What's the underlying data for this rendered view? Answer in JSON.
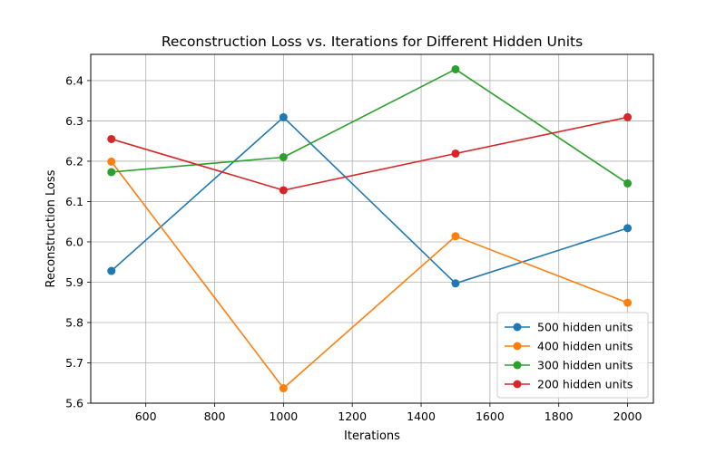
{
  "chart_data": {
    "type": "line",
    "title": "Reconstruction Loss vs. Iterations for Different Hidden Units",
    "xlabel": "Iterations",
    "ylabel": "Reconstruction Loss",
    "x": [
      500,
      1000,
      1500,
      2000
    ],
    "xlim": [
      440,
      2075
    ],
    "ylim": [
      5.6,
      6.465
    ],
    "xticks": [
      600,
      800,
      1000,
      1200,
      1400,
      1600,
      1800,
      2000
    ],
    "yticks": [
      5.6,
      5.7,
      5.8,
      5.9,
      6.0,
      6.1,
      6.2,
      6.3,
      6.4
    ],
    "grid": true,
    "legend": "lower-right",
    "series": [
      {
        "name": "500 hidden units",
        "color": "#1f77b4",
        "values": [
          5.928,
          6.309,
          5.897,
          6.034
        ]
      },
      {
        "name": "400 hidden units",
        "color": "#ff7f0e",
        "values": [
          6.199,
          5.637,
          6.014,
          5.849
        ]
      },
      {
        "name": "300 hidden units",
        "color": "#2ca02c",
        "values": [
          6.173,
          6.21,
          6.428,
          6.145
        ]
      },
      {
        "name": "200 hidden units",
        "color": "#d62728",
        "values": [
          6.255,
          6.128,
          6.219,
          6.309
        ]
      }
    ]
  }
}
